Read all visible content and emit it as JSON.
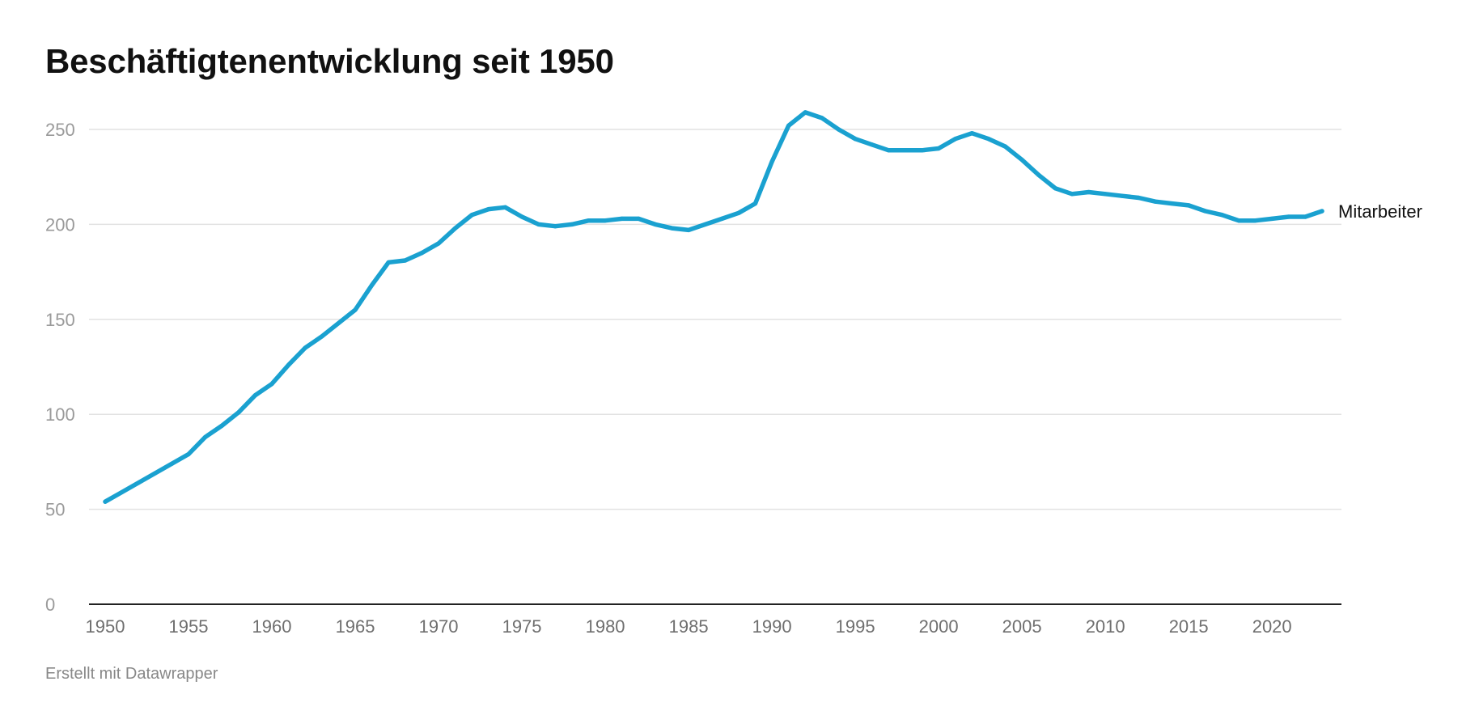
{
  "page": {
    "title": "Beschäftigtenentwicklung seit 1950",
    "footer": "Erstellt mit Datawrapper"
  },
  "chart_data": {
    "type": "line",
    "title": "Beschäftigtenentwicklung seit 1950",
    "xlabel": "",
    "ylabel": "",
    "xlim": [
      1950,
      2023
    ],
    "ylim": [
      0,
      250
    ],
    "grid": true,
    "legend": "direct label at line end",
    "color": "#1aa1d0",
    "x_ticks": [
      1950,
      1955,
      1960,
      1965,
      1970,
      1975,
      1980,
      1985,
      1990,
      1995,
      2000,
      2005,
      2010,
      2015,
      2020
    ],
    "y_ticks": [
      0,
      50,
      100,
      150,
      200,
      250
    ],
    "series": [
      {
        "name": "Mitarbeiter",
        "x": [
          1950,
          1951,
          1952,
          1953,
          1954,
          1955,
          1956,
          1957,
          1958,
          1959,
          1960,
          1961,
          1962,
          1963,
          1964,
          1965,
          1966,
          1967,
          1968,
          1969,
          1970,
          1971,
          1972,
          1973,
          1974,
          1975,
          1976,
          1977,
          1978,
          1979,
          1980,
          1981,
          1982,
          1983,
          1984,
          1985,
          1986,
          1987,
          1988,
          1989,
          1990,
          1991,
          1992,
          1993,
          1994,
          1995,
          1996,
          1997,
          1998,
          1999,
          2000,
          2001,
          2002,
          2003,
          2004,
          2005,
          2006,
          2007,
          2008,
          2009,
          2010,
          2011,
          2012,
          2013,
          2014,
          2015,
          2016,
          2017,
          2018,
          2019,
          2020,
          2021,
          2022,
          2023
        ],
        "y": [
          54,
          59,
          64,
          69,
          74,
          79,
          88,
          94,
          101,
          110,
          116,
          126,
          135,
          141,
          148,
          155,
          168,
          180,
          181,
          185,
          190,
          198,
          205,
          208,
          209,
          204,
          200,
          199,
          200,
          202,
          202,
          203,
          203,
          200,
          198,
          197,
          200,
          203,
          206,
          211,
          233,
          252,
          259,
          256,
          250,
          245,
          242,
          239,
          239,
          239,
          240,
          245,
          248,
          245,
          241,
          234,
          226,
          219,
          216,
          217,
          216,
          215,
          214,
          212,
          211,
          210,
          207,
          205,
          202,
          202,
          203,
          204,
          204,
          207
        ]
      }
    ]
  }
}
